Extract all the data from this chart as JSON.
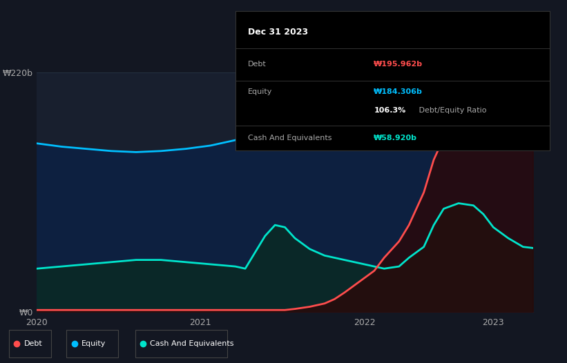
{
  "bg_color": "#131722",
  "plot_bg": "#181f2e",
  "ylabel_220": "₩220b",
  "ylabel_0": "₩0",
  "title_box": {
    "date": "Dec 31 2023",
    "debt_label": "Debt",
    "debt_value": "₩195.962b",
    "debt_color": "#ff4d4d",
    "equity_label": "Equity",
    "equity_value": "₩184.306b",
    "equity_color": "#00bfff",
    "ratio_bold": "106.3%",
    "ratio_rest": " Debt/Equity Ratio",
    "cash_label": "Cash And Equivalents",
    "cash_value": "₩58.920b",
    "cash_color": "#00e5cc",
    "box_bg": "#000000",
    "box_border": "#333333"
  },
  "legend": {
    "debt_label": "Debt",
    "equity_label": "Equity",
    "cash_label": "Cash And Equivalents",
    "debt_color": "#ff4d4d",
    "equity_color": "#00bfff",
    "cash_color": "#00e5cc"
  },
  "x_labels": [
    "2020",
    "2021",
    "2022",
    "2023"
  ],
  "x_ticks": [
    0.0,
    0.33,
    0.66,
    0.92
  ],
  "ylim": [
    0,
    220
  ],
  "debt_color": "#ff4d4d",
  "equity_color": "#00bfff",
  "cash_color": "#00e5cc",
  "debt_x": [
    0.0,
    0.05,
    0.1,
    0.15,
    0.2,
    0.25,
    0.3,
    0.35,
    0.4,
    0.42,
    0.44,
    0.46,
    0.48,
    0.5,
    0.52,
    0.55,
    0.58,
    0.6,
    0.62,
    0.65,
    0.68,
    0.7,
    0.73,
    0.75,
    0.78,
    0.8,
    0.82,
    0.85,
    0.88,
    0.9,
    0.92,
    0.95,
    0.98,
    1.0
  ],
  "debt_y": [
    2,
    2,
    2,
    2,
    2,
    2,
    2,
    2,
    2,
    2,
    2,
    2,
    2,
    2,
    3,
    5,
    8,
    12,
    18,
    28,
    38,
    50,
    65,
    80,
    110,
    140,
    160,
    175,
    185,
    190,
    192,
    194,
    196,
    195.962
  ],
  "equity_x": [
    0.0,
    0.05,
    0.1,
    0.15,
    0.2,
    0.25,
    0.3,
    0.35,
    0.4,
    0.45,
    0.5,
    0.55,
    0.6,
    0.65,
    0.7,
    0.75,
    0.8,
    0.85,
    0.88,
    0.9,
    0.92,
    0.95,
    0.98,
    1.0
  ],
  "equity_y": [
    155,
    152,
    150,
    148,
    147,
    148,
    150,
    153,
    158,
    163,
    168,
    172,
    175,
    177,
    178,
    180,
    182,
    184,
    185,
    184,
    182,
    182,
    183,
    184.306
  ],
  "cash_x": [
    0.0,
    0.05,
    0.1,
    0.15,
    0.2,
    0.25,
    0.3,
    0.35,
    0.4,
    0.42,
    0.44,
    0.46,
    0.48,
    0.5,
    0.52,
    0.55,
    0.58,
    0.6,
    0.62,
    0.65,
    0.68,
    0.7,
    0.73,
    0.75,
    0.78,
    0.8,
    0.82,
    0.85,
    0.88,
    0.9,
    0.92,
    0.95,
    0.98,
    1.0
  ],
  "cash_y": [
    40,
    42,
    44,
    46,
    48,
    48,
    46,
    44,
    42,
    40,
    55,
    70,
    80,
    78,
    68,
    58,
    52,
    50,
    48,
    45,
    42,
    40,
    42,
    50,
    60,
    80,
    95,
    100,
    98,
    90,
    78,
    68,
    60,
    58.92
  ]
}
